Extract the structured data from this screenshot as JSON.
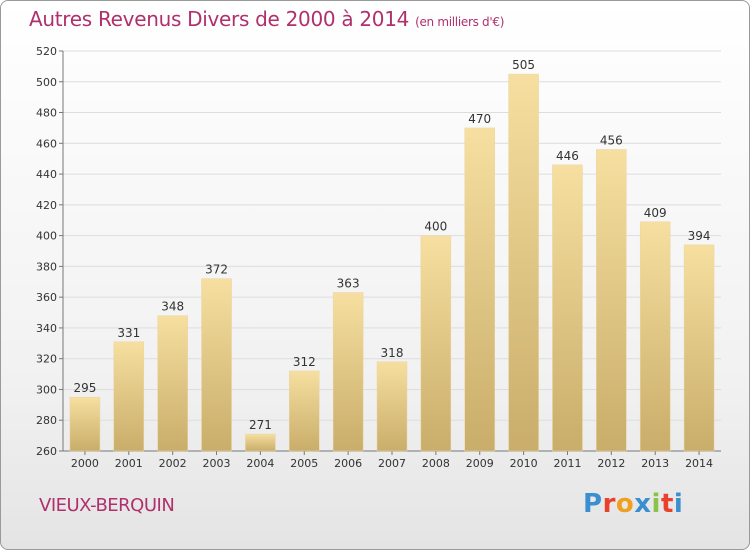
{
  "header": {
    "title": "Autres Revenus Divers de 2000 à 2014",
    "unit": "(en milliers d'€)"
  },
  "footer": {
    "city": "VIEUX-BERQUIN",
    "logo": "Proxiti",
    "logo_colors": [
      "#3a8fd0",
      "#e8422c",
      "#f0a020",
      "#3a8fd0",
      "#8bc34a",
      "#e8422c",
      "#3a8fd0"
    ]
  },
  "colors": {
    "title": "#b0306e",
    "bar_light": "#f6dfa0",
    "bar_dark": "#c9ad6a",
    "grid": "#dddddd",
    "axis_text": "#333333"
  },
  "chart_data": {
    "type": "bar",
    "title": "Autres Revenus Divers de 2000 à 2014",
    "subtitle": "(en milliers d'€)",
    "categories": [
      "2000",
      "2001",
      "2002",
      "2003",
      "2004",
      "2005",
      "2006",
      "2007",
      "2008",
      "2009",
      "2010",
      "2011",
      "2012",
      "2013",
      "2014"
    ],
    "values": [
      295,
      331,
      348,
      372,
      271,
      312,
      363,
      318,
      400,
      470,
      505,
      446,
      456,
      409,
      394
    ],
    "ylim": [
      260,
      520
    ],
    "yticks": [
      260,
      280,
      300,
      320,
      340,
      360,
      380,
      400,
      420,
      440,
      460,
      480,
      500,
      520
    ],
    "grid": true,
    "legend": "none"
  }
}
